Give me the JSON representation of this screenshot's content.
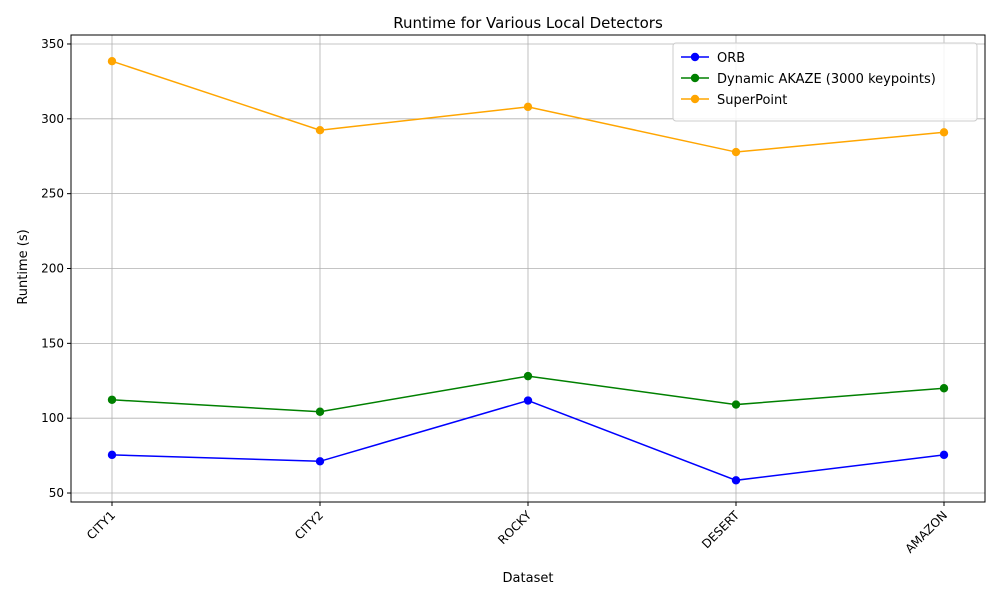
{
  "chart_data": {
    "type": "line",
    "title": "Runtime for Various Local Detectors",
    "xlabel": "Dataset",
    "ylabel": "Runtime (s)",
    "categories": [
      "CITY1",
      "CITY2",
      "ROCKY",
      "DESERT",
      "AMAZON"
    ],
    "y_ticks": [
      50,
      100,
      150,
      200,
      250,
      300,
      350
    ],
    "ylim": [
      44,
      356
    ],
    "grid": true,
    "legend_position": "top-right",
    "series": [
      {
        "name": "ORB",
        "color": "#0000ff",
        "values": [
          75.5,
          71.2,
          111.8,
          58.5,
          75.5
        ]
      },
      {
        "name": "Dynamic AKAZE (3000 keypoints)",
        "color": "#008000",
        "values": [
          112.3,
          104.3,
          128.1,
          109.1,
          120.0
        ]
      },
      {
        "name": "SuperPoint",
        "color": "#ffa500",
        "values": [
          338.5,
          292.4,
          308.0,
          277.8,
          291.0
        ]
      }
    ]
  }
}
